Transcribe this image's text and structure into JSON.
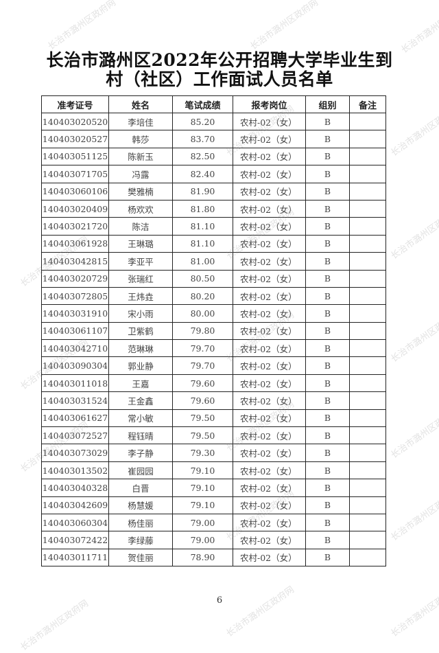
{
  "title": {
    "line1": "长治市潞州区2022年公开招聘大学毕业生到",
    "line2": "村（社区）工作面试人员名单"
  },
  "table": {
    "headers": [
      "准考证号",
      "姓名",
      "笔试成绩",
      "报考岗位",
      "组别",
      "备注"
    ],
    "rows": [
      [
        "140403020520",
        "李培佳",
        "85.20",
        "农村-02（女）",
        "B",
        ""
      ],
      [
        "140403020527",
        "韩莎",
        "83.70",
        "农村-02（女）",
        "B",
        ""
      ],
      [
        "140403051125",
        "陈新玉",
        "82.50",
        "农村-02（女）",
        "B",
        ""
      ],
      [
        "140403071705",
        "冯露",
        "82.40",
        "农村-02（女）",
        "B",
        ""
      ],
      [
        "140403060106",
        "樊雅楠",
        "81.90",
        "农村-02（女）",
        "B",
        ""
      ],
      [
        "140403020409",
        "杨欢欢",
        "81.80",
        "农村-02（女）",
        "B",
        ""
      ],
      [
        "140403021720",
        "陈洁",
        "81.10",
        "农村-02（女）",
        "B",
        ""
      ],
      [
        "140403061928",
        "王琳璐",
        "81.10",
        "农村-02（女）",
        "B",
        ""
      ],
      [
        "140403042815",
        "李亚平",
        "81.00",
        "农村-02（女）",
        "B",
        ""
      ],
      [
        "140403020729",
        "张瑞红",
        "80.50",
        "农村-02（女）",
        "B",
        ""
      ],
      [
        "140403072805",
        "王炜垚",
        "80.20",
        "农村-02（女）",
        "B",
        ""
      ],
      [
        "140403031910",
        "宋小雨",
        "80.00",
        "农村-02（女）",
        "B",
        ""
      ],
      [
        "140403061107",
        "卫紫鹤",
        "79.80",
        "农村-02（女）",
        "B",
        ""
      ],
      [
        "140403042710",
        "范琳琳",
        "79.70",
        "农村-02（女）",
        "B",
        ""
      ],
      [
        "140403090304",
        "郭业静",
        "79.70",
        "农村-02（女）",
        "B",
        ""
      ],
      [
        "140403011018",
        "王嘉",
        "79.60",
        "农村-02（女）",
        "B",
        ""
      ],
      [
        "140403031524",
        "王金鑫",
        "79.60",
        "农村-02（女）",
        "B",
        ""
      ],
      [
        "140403061627",
        "常小敏",
        "79.50",
        "农村-02（女）",
        "B",
        ""
      ],
      [
        "140403072527",
        "程钰晴",
        "79.50",
        "农村-02（女）",
        "B",
        ""
      ],
      [
        "140403073029",
        "李子静",
        "79.30",
        "农村-02（女）",
        "B",
        ""
      ],
      [
        "140403013502",
        "崔园园",
        "79.10",
        "农村-02（女）",
        "B",
        ""
      ],
      [
        "140403040328",
        "白晋",
        "79.10",
        "农村-02（女）",
        "B",
        ""
      ],
      [
        "140403042609",
        "杨慧媛",
        "79.10",
        "农村-02（女）",
        "B",
        ""
      ],
      [
        "140403060304",
        "杨佳丽",
        "79.00",
        "农村-02（女）",
        "B",
        ""
      ],
      [
        "140403072422",
        "李绿藤",
        "79.00",
        "农村-02（女）",
        "B",
        ""
      ],
      [
        "140403011711",
        "贺佳丽",
        "78.90",
        "农村-02（女）",
        "B",
        ""
      ]
    ]
  },
  "page_number": "6",
  "watermark": "长治市潞州区政府网"
}
